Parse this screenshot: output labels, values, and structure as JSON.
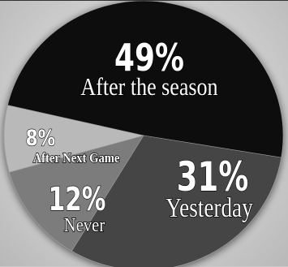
{
  "chart_data": {
    "type": "pie",
    "title": "",
    "slices": [
      {
        "label": "After the season",
        "value": 49,
        "display": "49%",
        "color": "#0d0d0d"
      },
      {
        "label": "Yesterday",
        "value": 31,
        "display": "31%",
        "color": "#444444"
      },
      {
        "label": "Never",
        "value": 12,
        "display": "12%",
        "color": "#7c7c7c"
      },
      {
        "label": "After Next Game",
        "value": 8,
        "display": "8%",
        "color": "#b9b9b9"
      }
    ]
  }
}
